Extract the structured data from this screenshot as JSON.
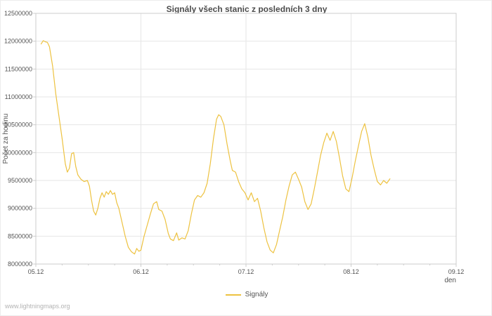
{
  "page": {
    "watermark": "www.lightningmaps.org"
  },
  "chart_data": {
    "type": "line",
    "title": "Signály všech stanic z posledních 3 dny",
    "xlabel": "den",
    "ylabel": "Počet za hodinu",
    "grid": true,
    "legend": {
      "position": "bottom-center",
      "entries": [
        {
          "label": "Signály",
          "color": "#edc240"
        }
      ]
    },
    "xlim": [
      0,
      4
    ],
    "ylim": [
      8000000,
      12500000
    ],
    "x_ticks": [
      {
        "value": 0,
        "label": "05.12"
      },
      {
        "value": 1,
        "label": "06.12"
      },
      {
        "value": 2,
        "label": "07.12"
      },
      {
        "value": 3,
        "label": "08.12"
      },
      {
        "value": 4,
        "label": "09.12"
      }
    ],
    "y_ticks": [
      8000000,
      8500000,
      9000000,
      9500000,
      10000000,
      10500000,
      11000000,
      11500000,
      12000000,
      12500000
    ],
    "colors": {
      "grid": "#e6e6e6",
      "border": "#cccccc",
      "text": "#545454",
      "title": "#4c4c4c",
      "watermark": "#b3b3b3",
      "line": "#edc240"
    },
    "series": [
      {
        "name": "Signály",
        "color": "#edc240",
        "points": [
          [
            0.05,
            11950000
          ],
          [
            0.07,
            12010000
          ],
          [
            0.09,
            11990000
          ],
          [
            0.11,
            11980000
          ],
          [
            0.13,
            11900000
          ],
          [
            0.16,
            11550000
          ],
          [
            0.19,
            11050000
          ],
          [
            0.22,
            10650000
          ],
          [
            0.25,
            10250000
          ],
          [
            0.28,
            9800000
          ],
          [
            0.3,
            9650000
          ],
          [
            0.32,
            9720000
          ],
          [
            0.34,
            9980000
          ],
          [
            0.36,
            10000000
          ],
          [
            0.38,
            9750000
          ],
          [
            0.4,
            9600000
          ],
          [
            0.43,
            9520000
          ],
          [
            0.46,
            9480000
          ],
          [
            0.49,
            9500000
          ],
          [
            0.51,
            9400000
          ],
          [
            0.53,
            9150000
          ],
          [
            0.55,
            8950000
          ],
          [
            0.57,
            8880000
          ],
          [
            0.59,
            9000000
          ],
          [
            0.61,
            9180000
          ],
          [
            0.63,
            9280000
          ],
          [
            0.65,
            9200000
          ],
          [
            0.67,
            9300000
          ],
          [
            0.69,
            9250000
          ],
          [
            0.71,
            9320000
          ],
          [
            0.73,
            9250000
          ],
          [
            0.75,
            9280000
          ],
          [
            0.77,
            9100000
          ],
          [
            0.79,
            9000000
          ],
          [
            0.82,
            8750000
          ],
          [
            0.85,
            8500000
          ],
          [
            0.88,
            8300000
          ],
          [
            0.91,
            8220000
          ],
          [
            0.94,
            8180000
          ],
          [
            0.96,
            8280000
          ],
          [
            0.98,
            8230000
          ],
          [
            1.0,
            8250000
          ],
          [
            1.03,
            8500000
          ],
          [
            1.06,
            8700000
          ],
          [
            1.09,
            8900000
          ],
          [
            1.12,
            9080000
          ],
          [
            1.15,
            9120000
          ],
          [
            1.17,
            8980000
          ],
          [
            1.2,
            8950000
          ],
          [
            1.23,
            8800000
          ],
          [
            1.26,
            8550000
          ],
          [
            1.28,
            8450000
          ],
          [
            1.31,
            8420000
          ],
          [
            1.34,
            8560000
          ],
          [
            1.36,
            8430000
          ],
          [
            1.39,
            8470000
          ],
          [
            1.42,
            8450000
          ],
          [
            1.45,
            8600000
          ],
          [
            1.48,
            8900000
          ],
          [
            1.51,
            9150000
          ],
          [
            1.54,
            9230000
          ],
          [
            1.57,
            9200000
          ],
          [
            1.6,
            9280000
          ],
          [
            1.63,
            9450000
          ],
          [
            1.66,
            9800000
          ],
          [
            1.69,
            10250000
          ],
          [
            1.72,
            10600000
          ],
          [
            1.74,
            10680000
          ],
          [
            1.76,
            10650000
          ],
          [
            1.79,
            10500000
          ],
          [
            1.82,
            10150000
          ],
          [
            1.85,
            9850000
          ],
          [
            1.87,
            9680000
          ],
          [
            1.9,
            9650000
          ],
          [
            1.93,
            9480000
          ],
          [
            1.96,
            9350000
          ],
          [
            1.99,
            9280000
          ],
          [
            2.02,
            9150000
          ],
          [
            2.05,
            9280000
          ],
          [
            2.08,
            9120000
          ],
          [
            2.11,
            9180000
          ],
          [
            2.14,
            8950000
          ],
          [
            2.17,
            8650000
          ],
          [
            2.2,
            8400000
          ],
          [
            2.23,
            8250000
          ],
          [
            2.26,
            8200000
          ],
          [
            2.29,
            8350000
          ],
          [
            2.32,
            8600000
          ],
          [
            2.35,
            8850000
          ],
          [
            2.38,
            9150000
          ],
          [
            2.41,
            9400000
          ],
          [
            2.44,
            9600000
          ],
          [
            2.47,
            9650000
          ],
          [
            2.5,
            9520000
          ],
          [
            2.53,
            9380000
          ],
          [
            2.56,
            9120000
          ],
          [
            2.59,
            8980000
          ],
          [
            2.62,
            9080000
          ],
          [
            2.65,
            9350000
          ],
          [
            2.68,
            9650000
          ],
          [
            2.71,
            9950000
          ],
          [
            2.74,
            10180000
          ],
          [
            2.77,
            10350000
          ],
          [
            2.8,
            10220000
          ],
          [
            2.83,
            10380000
          ],
          [
            2.86,
            10200000
          ],
          [
            2.89,
            9900000
          ],
          [
            2.92,
            9580000
          ],
          [
            2.95,
            9350000
          ],
          [
            2.98,
            9300000
          ],
          [
            3.01,
            9550000
          ],
          [
            3.04,
            9850000
          ],
          [
            3.07,
            10120000
          ],
          [
            3.1,
            10380000
          ],
          [
            3.13,
            10520000
          ],
          [
            3.16,
            10280000
          ],
          [
            3.19,
            9950000
          ],
          [
            3.22,
            9700000
          ],
          [
            3.25,
            9480000
          ],
          [
            3.28,
            9420000
          ],
          [
            3.31,
            9500000
          ],
          [
            3.34,
            9450000
          ],
          [
            3.37,
            9530000
          ]
        ]
      }
    ]
  }
}
